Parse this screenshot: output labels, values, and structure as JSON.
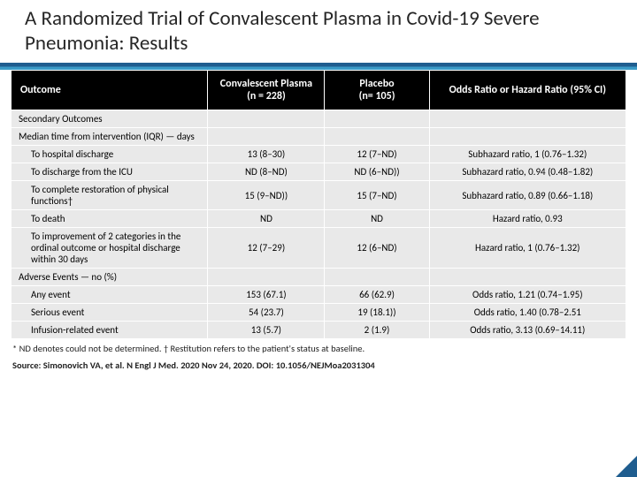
{
  "title": "A Randomized Trial of Convalescent Plasma in Covid-19 Severe Pneumonia: Results",
  "colors": {
    "header_bg": "#000000",
    "header_text": "#ffffff",
    "row_bg": "#e9e9e9",
    "underline_top": "#1f5d8f",
    "underline_bottom": "#3b9bc7"
  },
  "table": {
    "columns": [
      "Outcome",
      "Convalescent Plasma\n(n = 228)",
      "Placebo\n(n= 105)",
      "Odds Ratio or Hazard Ratio (95% CI)"
    ],
    "rows": [
      {
        "type": "section",
        "cells": [
          "Secondary Outcomes",
          "",
          "",
          ""
        ]
      },
      {
        "type": "section",
        "cells": [
          "Median time from intervention (IQR) — days",
          "",
          "",
          ""
        ]
      },
      {
        "type": "data",
        "cells": [
          "To hospital discharge",
          "13 (8–30)",
          "12 (7–ND)",
          "Subhazard ratio, 1 (0.76–1.32)"
        ]
      },
      {
        "type": "data",
        "cells": [
          "To discharge from the ICU",
          "ND (8–ND)",
          "ND (6–ND))",
          "Subhazard ratio, 0.94 (0.48–1.82)"
        ]
      },
      {
        "type": "data",
        "cells": [
          "To complete restoration of physical functions†",
          "15 (9–ND))",
          "15 (7–ND)",
          "Subhazard ratio, 0.89 (0.66–1.18)"
        ]
      },
      {
        "type": "data",
        "cells": [
          "To death",
          "ND",
          "ND",
          "Hazard ratio, 0.93"
        ]
      },
      {
        "type": "data",
        "cells": [
          "To improvement of 2 categories in the ordinal outcome or hospital discharge within 30 days",
          "12 (7–29)",
          "12 (6–ND)",
          "Hazard ratio, 1 (0.76–1.32)"
        ]
      },
      {
        "type": "section",
        "cells": [
          "Adverse Events — no (%)",
          "",
          "",
          ""
        ]
      },
      {
        "type": "data",
        "cells": [
          "Any event",
          "153 (67.1)",
          "66 (62.9)",
          "Odds ratio, 1.21 (0.74–1.95)"
        ]
      },
      {
        "type": "data",
        "cells": [
          "Serious event",
          "54 (23.7)",
          "19 (18.1))",
          "Odds ratio, 1.40 (0.78–2.51"
        ]
      },
      {
        "type": "data",
        "cells": [
          "Infusion-related event",
          "13 (5.7)",
          "2 (1.9)",
          "Odds ratio, 3.13 (0.69–14.11)"
        ]
      }
    ]
  },
  "footnote": "* ND denotes could not be determined. † Restitution refers to the patient's status at baseline.",
  "source": "Source: Simonovich VA, et al. N Engl J Med. 2020 Nov 24, 2020. DOI: 10.1056/NEJMoa2031304"
}
